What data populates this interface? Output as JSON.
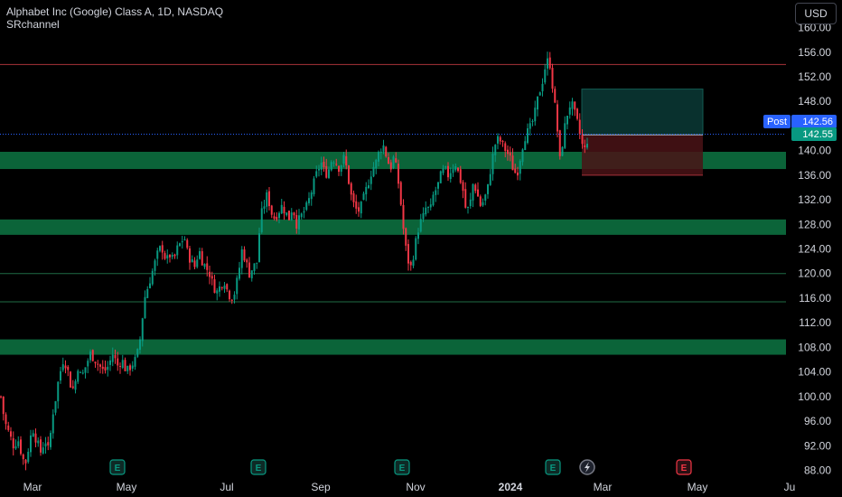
{
  "header": {
    "title": "Alphabet Inc (Google) Class A, 1D, NASDAQ",
    "indicator": "SRchannel",
    "currency": "USD"
  },
  "price_tags": {
    "post_label": "Post",
    "post_price": "142.56",
    "last_price": "142.55"
  },
  "colors": {
    "up": "#089981",
    "down": "#f23645",
    "zone": "#0f8a4f",
    "line": "#1f6b45",
    "resistance": "#a8323a",
    "post": "#2962ff"
  },
  "chart_data": {
    "type": "candlestick",
    "title": "Alphabet Inc (Google) Class A, 1D, NASDAQ",
    "ylim": [
      86,
      161
    ],
    "y_ticks": [
      "88.00",
      "92.00",
      "96.00",
      "100.00",
      "104.00",
      "108.00",
      "112.00",
      "116.00",
      "120.00",
      "124.00",
      "128.00",
      "132.00",
      "136.00",
      "140.00",
      "144.00",
      "148.00",
      "152.00",
      "156.00",
      "160.00"
    ],
    "x_labels": [
      "Mar",
      "May",
      "Jul",
      "Sep",
      "Nov",
      "2024",
      "Mar",
      "May",
      "Ju"
    ],
    "close_path": [
      [
        1,
        100
      ],
      [
        5,
        96
      ],
      [
        10,
        94
      ],
      [
        15,
        92
      ],
      [
        20,
        93
      ],
      [
        25,
        90
      ],
      [
        28,
        89
      ],
      [
        32,
        92
      ],
      [
        36,
        95
      ],
      [
        40,
        93
      ],
      [
        45,
        91
      ],
      [
        50,
        93
      ],
      [
        54,
        91
      ],
      [
        58,
        97
      ],
      [
        62,
        100
      ],
      [
        65,
        103
      ],
      [
        70,
        106
      ],
      [
        74,
        105
      ],
      [
        78,
        102
      ],
      [
        82,
        101
      ],
      [
        86,
        105
      ],
      [
        90,
        103
      ],
      [
        95,
        105
      ],
      [
        100,
        107
      ],
      [
        105,
        106
      ],
      [
        110,
        105
      ],
      [
        115,
        104
      ],
      [
        120,
        105
      ],
      [
        125,
        107
      ],
      [
        130,
        105
      ],
      [
        135,
        106
      ],
      [
        140,
        104
      ],
      [
        145,
        105
      ],
      [
        150,
        106
      ],
      [
        154,
        108
      ],
      [
        157,
        112
      ],
      [
        160,
        116
      ],
      [
        164,
        118
      ],
      [
        168,
        120
      ],
      [
        172,
        122
      ],
      [
        176,
        124
      ],
      [
        180,
        124
      ],
      [
        184,
        122
      ],
      [
        188,
        123
      ],
      [
        192,
        122
      ],
      [
        196,
        124
      ],
      [
        200,
        125
      ],
      [
        204,
        126
      ],
      [
        208,
        123
      ],
      [
        212,
        122
      ],
      [
        216,
        121
      ],
      [
        220,
        124
      ],
      [
        224,
        122
      ],
      [
        228,
        121
      ],
      [
        232,
        120
      ],
      [
        236,
        118
      ],
      [
        240,
        117
      ],
      [
        244,
        118
      ],
      [
        248,
        119
      ],
      [
        252,
        117
      ],
      [
        256,
        116
      ],
      [
        260,
        117
      ],
      [
        264,
        120
      ],
      [
        268,
        124
      ],
      [
        272,
        122
      ],
      [
        276,
        120
      ],
      [
        280,
        121
      ],
      [
        285,
        122
      ],
      [
        288,
        129
      ],
      [
        292,
        131
      ],
      [
        296,
        133
      ],
      [
        300,
        130
      ],
      [
        304,
        129
      ],
      [
        308,
        130
      ],
      [
        312,
        131
      ],
      [
        316,
        130
      ],
      [
        320,
        129
      ],
      [
        324,
        131
      ],
      [
        328,
        128
      ],
      [
        332,
        129
      ],
      [
        336,
        130
      ],
      [
        340,
        131
      ],
      [
        344,
        133
      ],
      [
        348,
        135
      ],
      [
        352,
        137
      ],
      [
        356,
        138
      ],
      [
        360,
        136
      ],
      [
        364,
        137
      ],
      [
        368,
        139
      ],
      [
        372,
        138
      ],
      [
        376,
        137
      ],
      [
        380,
        139
      ],
      [
        384,
        137
      ],
      [
        388,
        133
      ],
      [
        392,
        131
      ],
      [
        396,
        130
      ],
      [
        400,
        131
      ],
      [
        404,
        133
      ],
      [
        408,
        135
      ],
      [
        412,
        137
      ],
      [
        416,
        138
      ],
      [
        420,
        140
      ],
      [
        424,
        141
      ],
      [
        428,
        139
      ],
      [
        432,
        137
      ],
      [
        436,
        139
      ],
      [
        440,
        136
      ],
      [
        444,
        131
      ],
      [
        448,
        125
      ],
      [
        452,
        122
      ],
      [
        455,
        121
      ],
      [
        460,
        125
      ],
      [
        464,
        128
      ],
      [
        468,
        129
      ],
      [
        472,
        131
      ],
      [
        476,
        130
      ],
      [
        480,
        133
      ],
      [
        484,
        134
      ],
      [
        488,
        136
      ],
      [
        492,
        137
      ],
      [
        496,
        136
      ],
      [
        500,
        137
      ],
      [
        504,
        138
      ],
      [
        508,
        136
      ],
      [
        512,
        134
      ],
      [
        516,
        130
      ],
      [
        520,
        131
      ],
      [
        524,
        135
      ],
      [
        528,
        133
      ],
      [
        532,
        131
      ],
      [
        536,
        132
      ],
      [
        540,
        134
      ],
      [
        544,
        138
      ],
      [
        548,
        141
      ],
      [
        552,
        142
      ],
      [
        556,
        141
      ],
      [
        560,
        140
      ],
      [
        564,
        139
      ],
      [
        568,
        137
      ],
      [
        572,
        136
      ],
      [
        576,
        139
      ],
      [
        580,
        142
      ],
      [
        584,
        143
      ],
      [
        588,
        144
      ],
      [
        592,
        146
      ],
      [
        596,
        149
      ],
      [
        600,
        151
      ],
      [
        604,
        154
      ],
      [
        608,
        155
      ],
      [
        612,
        150
      ],
      [
        616,
        145
      ],
      [
        620,
        138
      ],
      [
        624,
        143
      ],
      [
        628,
        146
      ],
      [
        632,
        148
      ],
      [
        636,
        146
      ],
      [
        640,
        144
      ],
      [
        644,
        141
      ],
      [
        648,
        140
      ],
      [
        651,
        142.55
      ]
    ],
    "support_resistance_zones": [
      {
        "from": 137.0,
        "to": 139.8
      },
      {
        "from": 126.3,
        "to": 128.8
      },
      {
        "from": 106.8,
        "to": 109.3
      }
    ],
    "horizontal_lines": [
      120.0,
      115.4,
      154.0
    ],
    "position_tool": {
      "entry": 142.55,
      "target": 150.0,
      "stop": 136.0,
      "x_start_label": "Feb",
      "x_end_label": "Apr"
    },
    "event_markers": [
      "E",
      "E",
      "E",
      "E",
      "lightning",
      "E"
    ],
    "grid": false,
    "legend": "none"
  }
}
